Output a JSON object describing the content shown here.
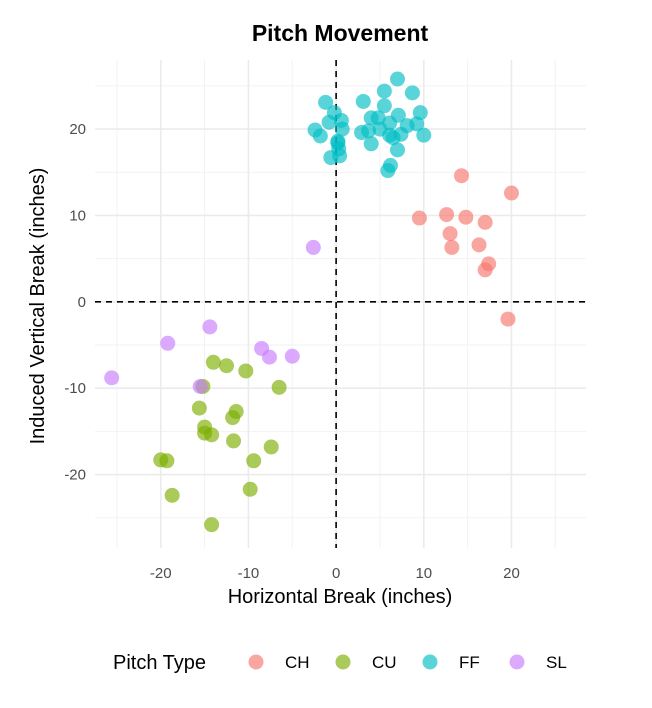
{
  "chart_data": {
    "type": "scatter",
    "title": "Pitch Movement",
    "xlabel": "Horizontal Break (inches)",
    "ylabel": "Induced Vertical Break (inches)",
    "xlim": [
      -27.5,
      28.5
    ],
    "ylim": [
      -28.5,
      28
    ],
    "x_ticks": [
      -20,
      -10,
      0,
      10,
      20
    ],
    "y_ticks": [
      -20,
      -10,
      0,
      10,
      20
    ],
    "grid": true,
    "reference_lines": {
      "x": 0,
      "y": 0,
      "style": "dashed"
    },
    "legend": {
      "title": "Pitch Type",
      "position": "bottom"
    },
    "series": [
      {
        "name": "CH",
        "color": "#F8766D",
        "points": [
          [
            20,
            12.6
          ],
          [
            14.3,
            14.6
          ],
          [
            9.5,
            9.7
          ],
          [
            12.6,
            10.1
          ],
          [
            14.8,
            9.8
          ],
          [
            17,
            9.2
          ],
          [
            13,
            7.9
          ],
          [
            13.2,
            6.3
          ],
          [
            16.3,
            6.6
          ],
          [
            17.4,
            4.4
          ],
          [
            17,
            3.7
          ],
          [
            19.6,
            -2
          ]
        ]
      },
      {
        "name": "CU",
        "color": "#7CAE00",
        "points": [
          [
            -14,
            -7
          ],
          [
            -12.5,
            -7.4
          ],
          [
            -10.3,
            -8
          ],
          [
            -6.5,
            -9.9
          ],
          [
            -15.2,
            -9.8
          ],
          [
            -15.6,
            -12.3
          ],
          [
            -11.4,
            -12.7
          ],
          [
            -11.8,
            -13.4
          ],
          [
            -15,
            -14.5
          ],
          [
            -15,
            -15.2
          ],
          [
            -14.2,
            -15.4
          ],
          [
            -11.7,
            -16.1
          ],
          [
            -7.4,
            -16.8
          ],
          [
            -9.4,
            -18.4
          ],
          [
            -20,
            -18.3
          ],
          [
            -19.3,
            -18.4
          ],
          [
            -18.7,
            -22.4
          ],
          [
            -9.8,
            -21.7
          ],
          [
            -14.2,
            -25.8
          ]
        ]
      },
      {
        "name": "FF",
        "color": "#00BFC4",
        "points": [
          [
            7,
            25.8
          ],
          [
            5.5,
            24.4
          ],
          [
            8.7,
            24.2
          ],
          [
            -1.2,
            23.1
          ],
          [
            3.1,
            23.2
          ],
          [
            5.5,
            22.7
          ],
          [
            -0.2,
            21.9
          ],
          [
            9.6,
            21.9
          ],
          [
            0.6,
            21
          ],
          [
            4,
            21.3
          ],
          [
            4.8,
            21.3
          ],
          [
            7.1,
            21.6
          ],
          [
            -0.8,
            20.8
          ],
          [
            6.1,
            20.7
          ],
          [
            8.1,
            20.4
          ],
          [
            9.2,
            20.6
          ],
          [
            -2.4,
            19.9
          ],
          [
            0.7,
            20
          ],
          [
            3.7,
            19.8
          ],
          [
            5,
            20
          ],
          [
            2.9,
            19.6
          ],
          [
            6.1,
            19.3
          ],
          [
            6.5,
            19
          ],
          [
            7.4,
            19.4
          ],
          [
            10,
            19.3
          ],
          [
            -1.8,
            19.2
          ],
          [
            0.2,
            18.4
          ],
          [
            4,
            18.3
          ],
          [
            0.3,
            17.7
          ],
          [
            7,
            17.6
          ],
          [
            -0.6,
            16.7
          ],
          [
            0.4,
            16.9
          ],
          [
            6.2,
            15.8
          ],
          [
            5.9,
            15.2
          ],
          [
            0.2,
            18.6
          ]
        ]
      },
      {
        "name": "SL",
        "color": "#C77CFF",
        "points": [
          [
            -2.6,
            6.3
          ],
          [
            -14.4,
            -2.9
          ],
          [
            -19.2,
            -4.8
          ],
          [
            -8.5,
            -5.4
          ],
          [
            -7.6,
            -6.4
          ],
          [
            -5,
            -6.3
          ],
          [
            -25.6,
            -8.8
          ],
          [
            -15.5,
            -9.8
          ]
        ]
      }
    ]
  }
}
